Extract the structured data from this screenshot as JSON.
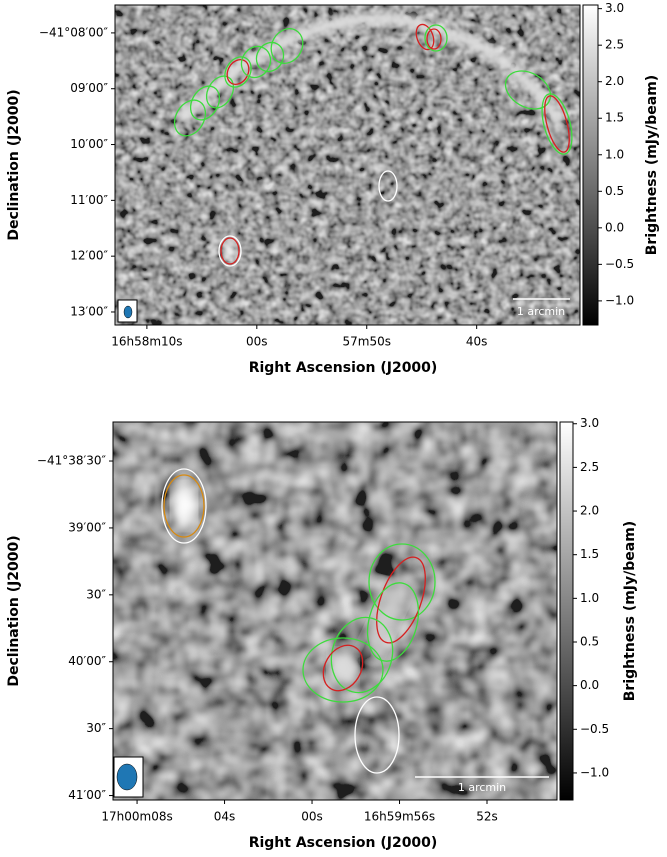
{
  "chart_data": [
    {
      "type": "image",
      "xlabel": "Right Ascension (J2000)",
      "ylabel": "Declination (J2000)",
      "xlim": [
        61092.9,
        61050.6
      ],
      "ylim": [
        -148394,
        -148050
      ],
      "xticks": [
        {
          "value": 61090,
          "label": "16h58m10s"
        },
        {
          "value": 61080,
          "label": "00s"
        },
        {
          "value": 61070,
          "label": "57m50s"
        },
        {
          "value": 61060,
          "label": "40s"
        }
      ],
      "yticks": [
        {
          "value": -148080,
          "label": "−41°08′00″"
        },
        {
          "value": -148140,
          "label": "09′00″"
        },
        {
          "value": -148200,
          "label": "10′00″"
        },
        {
          "value": -148260,
          "label": "11′00″"
        },
        {
          "value": -148320,
          "label": "12′00″"
        },
        {
          "value": -148380,
          "label": "13′00″"
        }
      ],
      "colorbar_label": "Brightness (mJy/beam)",
      "clim": [
        -1.33,
        3.05
      ],
      "cticks": [
        {
          "value": 3,
          "label": "3.0"
        },
        2.5,
        {
          "value": 2,
          "label": "2.0"
        },
        1.5,
        {
          "value": 1,
          "label": "1.0"
        },
        0.5,
        {
          "value": 0,
          "label": "0.0"
        },
        {
          "value": -0.5,
          "label": "−0.5"
        },
        {
          "value": -1,
          "label": "−1.0"
        }
      ],
      "scalebar_label": "1 arcmin"
    },
    {
      "type": "image",
      "xlabel": "Right Ascension (J2000)",
      "ylabel": "Declination (J2000)",
      "xlim": [
        61209.1,
        61188.8
      ],
      "ylim": [
        -150062,
        -149892.5
      ],
      "xticks": [
        {
          "value": 61208,
          "label": "17h00m08s"
        },
        {
          "value": 61204,
          "label": "04s"
        },
        {
          "value": 61200,
          "label": "00s"
        },
        {
          "value": 61196,
          "label": "16h59m56s"
        },
        {
          "value": 61192,
          "label": "52s"
        }
      ],
      "yticks": [
        {
          "value": -149910,
          "label": "−41°38′30″"
        },
        {
          "value": -149940,
          "label": "39′00″"
        },
        {
          "value": -149970,
          "label": "30″"
        },
        {
          "value": -150000,
          "label": "40′00″"
        },
        {
          "value": -150030,
          "label": "30″"
        },
        {
          "value": -150060,
          "label": "41′00″"
        }
      ],
      "colorbar_label": "Brightness (mJy/beam)",
      "clim": [
        -1.31,
        3.02
      ],
      "cticks": [
        {
          "value": 3,
          "label": "3.0"
        },
        2.5,
        {
          "value": 2,
          "label": "2.0"
        },
        1.5,
        {
          "value": 1,
          "label": "1.0"
        },
        0.5,
        {
          "value": 0,
          "label": "0.0"
        },
        {
          "value": -0.5,
          "label": "−0.5"
        },
        {
          "value": -1,
          "label": "−1.0"
        }
      ],
      "scalebar_label": "1 arcmin"
    }
  ]
}
